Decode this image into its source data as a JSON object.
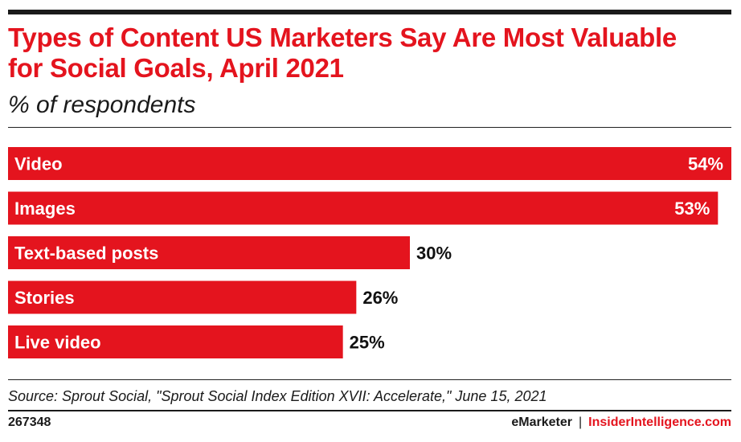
{
  "header": {
    "title": "Types of Content US Marketers Say Are Most Valuable for Social Goals, April 2021",
    "subtitle": "% of respondents"
  },
  "chart_data": {
    "type": "bar",
    "orientation": "horizontal",
    "categories": [
      "Video",
      "Images",
      "Text-based posts",
      "Stories",
      "Live video"
    ],
    "values": [
      54,
      53,
      30,
      26,
      25
    ],
    "value_labels": [
      "54%",
      "53%",
      "30%",
      "26%",
      "25%"
    ],
    "unit": "%",
    "bar_color": "#e4141e",
    "grid": false,
    "legend": "none"
  },
  "footer": {
    "source": "Source: Sprout Social, \"Sprout Social Index Edition XVII: Accelerate,\" June 15, 2021",
    "chart_id": "267348",
    "brand_emarketer": "eMarketer",
    "brand_separator": "|",
    "brand_insider": "InsiderIntelligence.com"
  }
}
